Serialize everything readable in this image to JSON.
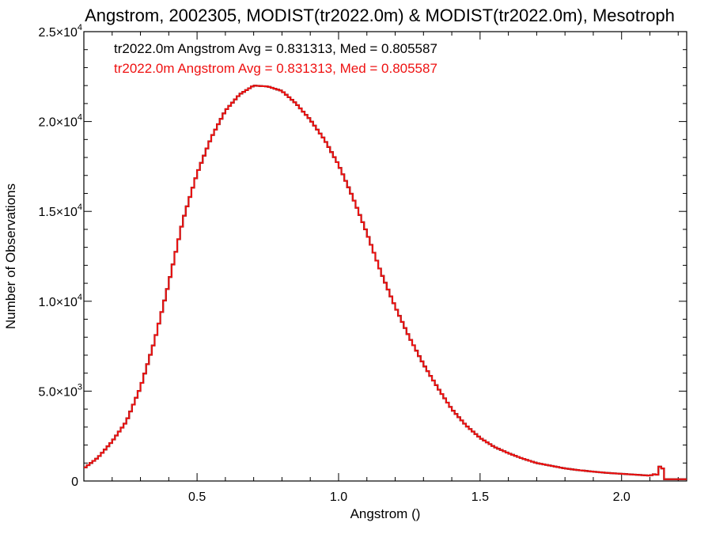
{
  "chart_data": {
    "type": "histogram",
    "title": "Angstrom, 2002305, MODIST(tr2022.0m) & MODIST(tr2022.0m), Mesotroph",
    "xlabel": "Angstrom ()",
    "ylabel": "Number of Observations",
    "xlim": [
      0.1,
      2.23
    ],
    "ylim": [
      0,
      25000
    ],
    "x_ticks": [
      0.5,
      1.0,
      1.5,
      2.0
    ],
    "x_tick_labels": [
      "0.5",
      "1.0",
      "1.5",
      "2.0"
    ],
    "y_ticks": [
      0,
      5000,
      10000,
      15000,
      20000,
      25000
    ],
    "y_tick_labels": [
      {
        "mantissa": "0",
        "exponent": ""
      },
      {
        "mantissa": "5.0×10",
        "exponent": "3"
      },
      {
        "mantissa": "1.0×10",
        "exponent": "4"
      },
      {
        "mantissa": "1.5×10",
        "exponent": "4"
      },
      {
        "mantissa": "2.0×10",
        "exponent": "4"
      },
      {
        "mantissa": "2.5×10",
        "exponent": "4"
      }
    ],
    "grid": false,
    "legend_position": "top-left",
    "series": [
      {
        "name": "tr2022.0m Angstrom Avg = 0.831313, Med = 0.805587",
        "color": "#000000",
        "x": [
          0.1,
          0.15,
          0.2,
          0.25,
          0.3,
          0.35,
          0.4,
          0.45,
          0.5,
          0.55,
          0.6,
          0.65,
          0.7,
          0.75,
          0.8,
          0.85,
          0.9,
          0.95,
          1.0,
          1.05,
          1.1,
          1.15,
          1.2,
          1.25,
          1.3,
          1.35,
          1.4,
          1.45,
          1.5,
          1.55,
          1.6,
          1.65,
          1.7,
          1.75,
          1.8,
          1.85,
          1.9,
          1.95,
          2.0,
          2.05,
          2.1,
          2.12,
          2.13,
          2.14,
          2.15,
          2.2,
          2.23
        ],
        "y": [
          700,
          1300,
          2200,
          3300,
          5200,
          7800,
          11000,
          14500,
          17100,
          19100,
          20600,
          21500,
          22000,
          21950,
          21700,
          21000,
          20100,
          19000,
          17600,
          15800,
          13800,
          11600,
          9700,
          8000,
          6500,
          5200,
          4000,
          3100,
          2400,
          1900,
          1550,
          1250,
          1000,
          850,
          700,
          600,
          520,
          450,
          400,
          350,
          300,
          400,
          300,
          1300,
          100,
          100,
          100
        ]
      },
      {
        "name": "tr2022.0m Angstrom Avg = 0.831313, Med = 0.805587",
        "color": "#ee1111",
        "x": [
          0.1,
          0.15,
          0.2,
          0.25,
          0.3,
          0.35,
          0.4,
          0.45,
          0.5,
          0.55,
          0.6,
          0.65,
          0.7,
          0.75,
          0.8,
          0.85,
          0.9,
          0.95,
          1.0,
          1.05,
          1.1,
          1.15,
          1.2,
          1.25,
          1.3,
          1.35,
          1.4,
          1.45,
          1.5,
          1.55,
          1.6,
          1.65,
          1.7,
          1.75,
          1.8,
          1.85,
          1.9,
          1.95,
          2.0,
          2.05,
          2.1,
          2.12,
          2.13,
          2.14,
          2.15,
          2.2,
          2.23
        ],
        "y": [
          700,
          1300,
          2200,
          3300,
          5200,
          7800,
          11000,
          14500,
          17100,
          19100,
          20600,
          21500,
          22000,
          21950,
          21700,
          21000,
          20100,
          19000,
          17600,
          15800,
          13800,
          11600,
          9700,
          8000,
          6500,
          5200,
          4000,
          3100,
          2400,
          1900,
          1550,
          1250,
          1000,
          850,
          700,
          600,
          520,
          450,
          400,
          350,
          300,
          400,
          300,
          1300,
          100,
          100,
          100
        ]
      }
    ]
  }
}
